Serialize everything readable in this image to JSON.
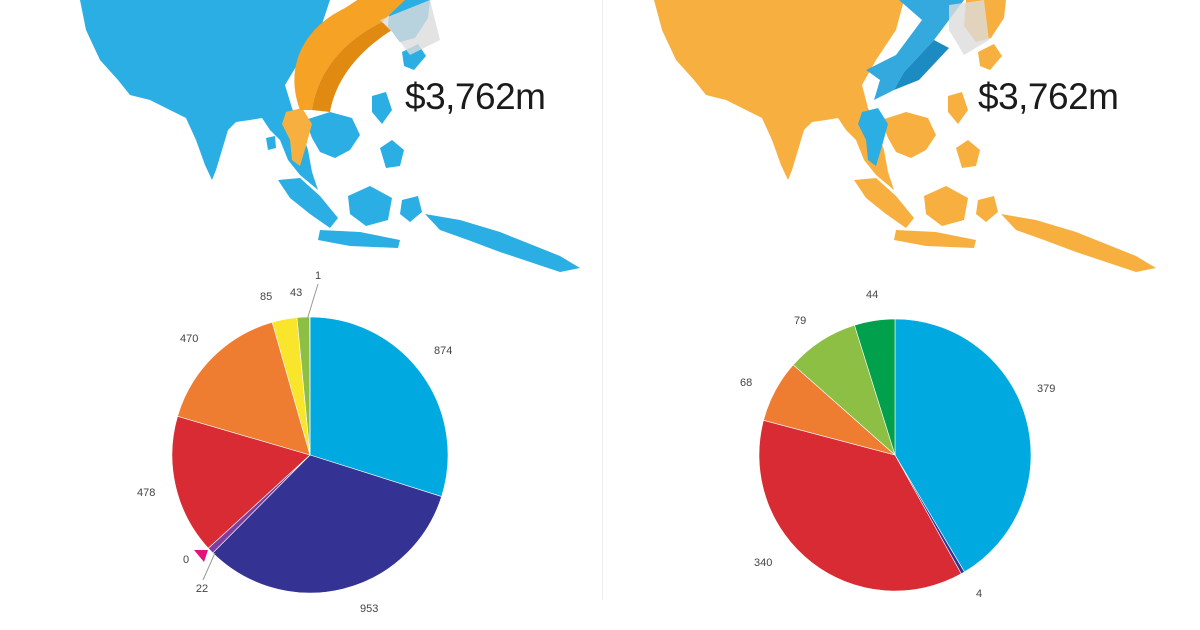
{
  "colors": {
    "left_map": "#2aaee3",
    "right_map": "#f7b040",
    "left_arrow": "#f5a225",
    "right_arrow": "#33a9de"
  },
  "left": {
    "total_label": "$3,762m"
  },
  "right": {
    "total_label": "$3,762m"
  },
  "chart_data": [
    {
      "type": "pie",
      "title": "",
      "start_angle": 0,
      "slices": [
        {
          "label": "874",
          "value": 874,
          "color": "#00a9df"
        },
        {
          "label": "953",
          "value": 953,
          "color": "#343393"
        },
        {
          "label": "22",
          "value": 22,
          "color": "#7b3fa0"
        },
        {
          "label": "0",
          "value": 0,
          "color": "#e2137c"
        },
        {
          "label": "478",
          "value": 478,
          "color": "#d82b33"
        },
        {
          "label": "470",
          "value": 470,
          "color": "#ee7d31"
        },
        {
          "label": "85",
          "value": 85,
          "color": "#f9e52c"
        },
        {
          "label": "43",
          "value": 43,
          "color": "#8dbf45"
        },
        {
          "label": "1",
          "value": 1,
          "color": "#0f9a4b"
        }
      ]
    },
    {
      "type": "pie",
      "title": "",
      "start_angle": 0,
      "slices": [
        {
          "label": "379",
          "value": 379,
          "color": "#00a9df"
        },
        {
          "label": "4",
          "value": 4,
          "color": "#343393"
        },
        {
          "label": "340",
          "value": 340,
          "color": "#d82b33"
        },
        {
          "label": "68",
          "value": 68,
          "color": "#ee7d31"
        },
        {
          "label": "79",
          "value": 79,
          "color": "#8dbf45"
        },
        {
          "label": "44",
          "value": 44,
          "color": "#00a04c"
        }
      ]
    }
  ]
}
